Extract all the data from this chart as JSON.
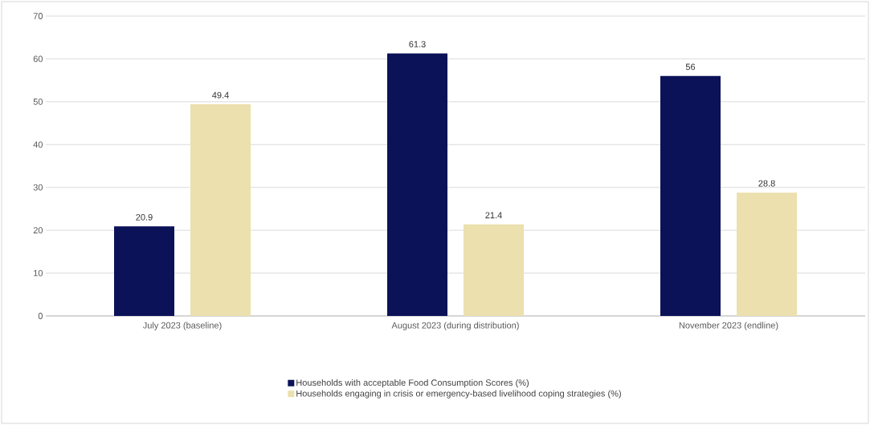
{
  "chart_data": {
    "type": "bar",
    "categories": [
      "July 2023 (baseline)",
      "August 2023 (during distribution)",
      "November 2023 (endline)"
    ],
    "series": [
      {
        "name": "Households with acceptable Food Consumption Scores (%)",
        "color": "#0b1257",
        "values": [
          20.9,
          61.3,
          56
        ]
      },
      {
        "name": "Households engaging in crisis or emergency-based livelihood coping strategies (%)",
        "color": "#ebe0ae",
        "values": [
          49.4,
          21.4,
          28.8
        ]
      }
    ],
    "ylim": [
      0,
      70
    ],
    "yticks": [
      0,
      10,
      20,
      30,
      40,
      50,
      60,
      70
    ],
    "grid": "y",
    "legend": "bottom",
    "data_labels": true
  }
}
